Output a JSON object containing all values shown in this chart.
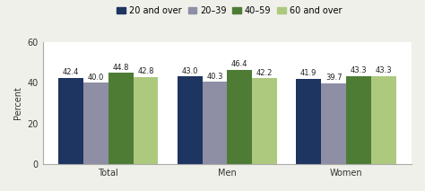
{
  "categories": [
    "Total",
    "Men",
    "Women"
  ],
  "series": [
    {
      "label": "20 and over",
      "values": [
        42.4,
        43.0,
        41.9
      ],
      "color": "#1e3461"
    },
    {
      "label": "20–39",
      "values": [
        40.0,
        40.3,
        39.7
      ],
      "color": "#8e8fa5"
    },
    {
      "label": "40–59",
      "values": [
        44.8,
        46.4,
        43.3
      ],
      "color": "#4e7c35"
    },
    {
      "label": "60 and over",
      "values": [
        42.8,
        42.2,
        43.3
      ],
      "color": "#adc97e"
    }
  ],
  "ylabel": "Percent",
  "ylim": [
    0,
    60
  ],
  "yticks": [
    0,
    20,
    40,
    60
  ],
  "bar_width": 0.21,
  "label_fontsize": 6.0,
  "tick_fontsize": 7.0,
  "legend_fontsize": 7.0,
  "bg_color": "#ffffff",
  "fig_bg_color": "#f0f0eb"
}
